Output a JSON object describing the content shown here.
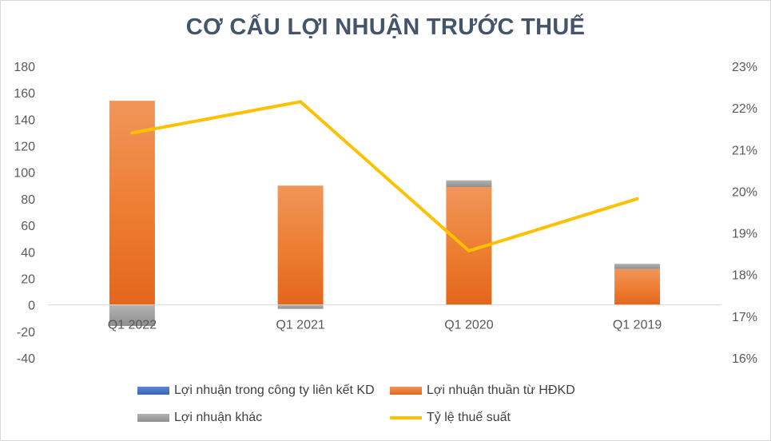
{
  "chart_data": {
    "type": "bar",
    "title": "CƠ CẤU LỢI NHUẬN TRƯỚC THUẾ",
    "categories": [
      "Q1 2022",
      "Q1 2021",
      "Q1 2020",
      "Q1 2019"
    ],
    "series": [
      {
        "name": "Lợi nhuận trong công ty liên kết KD",
        "values": [
          0,
          0,
          0,
          0
        ],
        "color": "#4472c4",
        "axis": "left"
      },
      {
        "name": "Lợi nhuận thuần từ HĐKD",
        "values": [
          154,
          90,
          89,
          27
        ],
        "color": "#ed7d31",
        "axis": "left"
      },
      {
        "name": "Lợi nhuận khác",
        "values": [
          -16,
          -3,
          5,
          4
        ],
        "color": "#a5a5a5",
        "axis": "left"
      },
      {
        "name": "Tỷ lệ thuế suất",
        "values": [
          21.4,
          22.15,
          18.57,
          19.82
        ],
        "color": "#ffc000",
        "axis": "right",
        "kind": "line"
      }
    ],
    "y_left": {
      "min": -40,
      "max": 180,
      "step": 20,
      "ticks": [
        "180",
        "160",
        "140",
        "120",
        "100",
        "80",
        "60",
        "40",
        "20",
        "0",
        "-20",
        "-40"
      ]
    },
    "y_right": {
      "min": 16,
      "max": 23,
      "step": 1,
      "ticks": [
        "23%",
        "22%",
        "21%",
        "20%",
        "19%",
        "18%",
        "17%",
        "16%"
      ]
    },
    "grid": false,
    "legend_position": "bottom"
  }
}
